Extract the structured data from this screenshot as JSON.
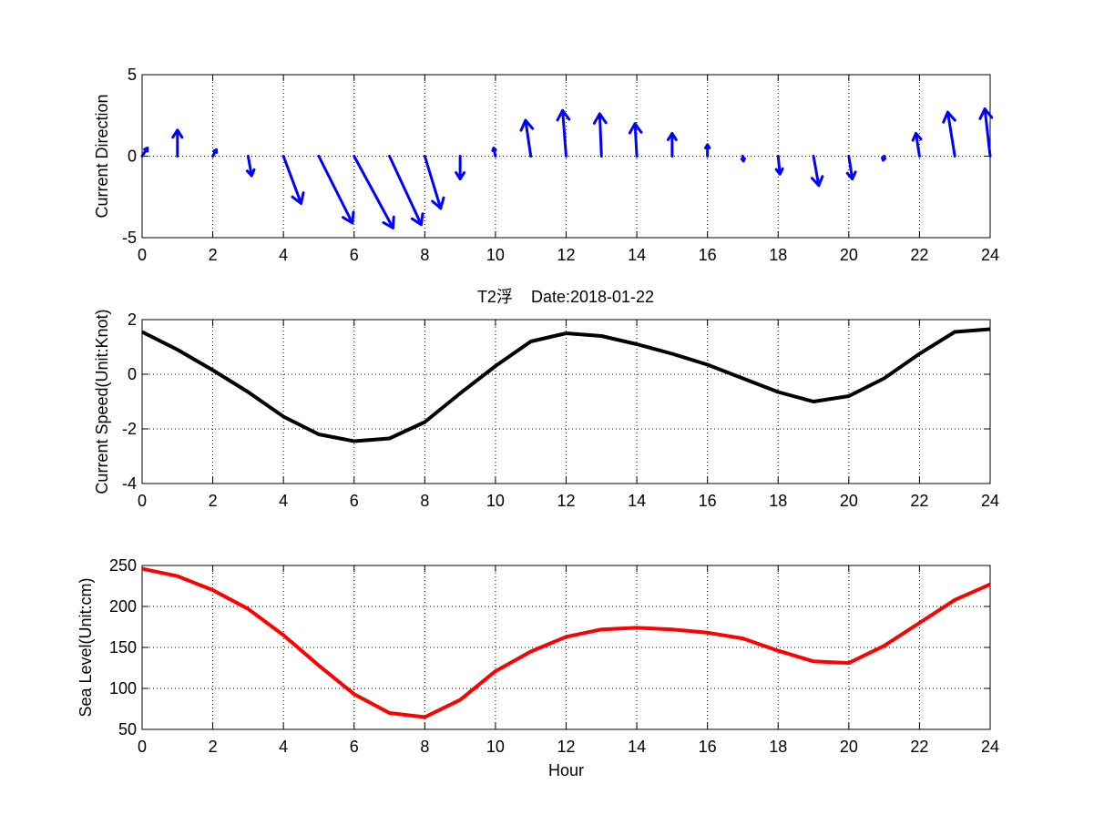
{
  "title": "T2浮    Date:2018-01-22",
  "colors": {
    "direction": "#0000ff",
    "speed": "#000000",
    "level": "#ff0000",
    "title": "#ff0000"
  },
  "chart_data": [
    {
      "type": "quiver",
      "ylabel": "Current Direction",
      "xlabel": "",
      "xlim": [
        0,
        24
      ],
      "ylim": [
        -5,
        5
      ],
      "xticks": [
        0,
        2,
        4,
        6,
        8,
        10,
        12,
        14,
        16,
        18,
        20,
        22,
        24
      ],
      "yticks": [
        -5,
        0,
        5
      ],
      "grid": true,
      "x": [
        0,
        1,
        2,
        3,
        4,
        5,
        6,
        7,
        8,
        9,
        10,
        11,
        12,
        13,
        14,
        15,
        16,
        17,
        18,
        19,
        20,
        21,
        22,
        23,
        24
      ],
      "u": [
        0.15,
        0.0,
        0.1,
        0.1,
        0.5,
        0.95,
        1.1,
        0.9,
        0.45,
        0.0,
        -0.05,
        -0.15,
        -0.1,
        -0.05,
        -0.05,
        0.0,
        0.0,
        0.02,
        0.05,
        0.15,
        0.1,
        -0.03,
        -0.1,
        -0.2,
        -0.15
      ],
      "v": [
        0.5,
        1.6,
        0.4,
        -1.2,
        -2.9,
        -4.1,
        -4.4,
        -4.2,
        -3.2,
        -1.4,
        0.5,
        2.2,
        2.8,
        2.6,
        2.0,
        1.4,
        0.7,
        -0.3,
        -1.1,
        -1.8,
        -1.4,
        -0.25,
        1.4,
        2.7,
        2.9
      ]
    },
    {
      "type": "line",
      "ylabel": "Current Speed(Unit:Knot)",
      "xlabel": "",
      "xlim": [
        0,
        24
      ],
      "ylim": [
        -4,
        2
      ],
      "xticks": [
        0,
        2,
        4,
        6,
        8,
        10,
        12,
        14,
        16,
        18,
        20,
        22,
        24
      ],
      "yticks": [
        -4,
        -2,
        0,
        2
      ],
      "grid": true,
      "series": [
        {
          "x": [
            0,
            1,
            2,
            3,
            4,
            5,
            6,
            7,
            8,
            9,
            10,
            11,
            12,
            13,
            14,
            15,
            16,
            17,
            18,
            19,
            20,
            21,
            22,
            23,
            24
          ],
          "values": [
            1.55,
            0.9,
            0.15,
            -0.65,
            -1.55,
            -2.2,
            -2.45,
            -2.35,
            -1.75,
            -0.7,
            0.3,
            1.2,
            1.5,
            1.4,
            1.1,
            0.75,
            0.35,
            -0.15,
            -0.65,
            -1.0,
            -0.8,
            -0.15,
            0.75,
            1.55,
            1.65
          ]
        }
      ]
    },
    {
      "type": "line",
      "ylabel": "Sea Level(Unit:cm)",
      "xlabel": "Hour",
      "xlim": [
        0,
        24
      ],
      "ylim": [
        50,
        250
      ],
      "xticks": [
        0,
        2,
        4,
        6,
        8,
        10,
        12,
        14,
        16,
        18,
        20,
        22,
        24
      ],
      "yticks": [
        50,
        100,
        150,
        200,
        250
      ],
      "grid": true,
      "series": [
        {
          "x": [
            0,
            1,
            2,
            3,
            4,
            5,
            6,
            7,
            8,
            9,
            10,
            11,
            12,
            13,
            14,
            15,
            16,
            17,
            18,
            19,
            20,
            21,
            22,
            23,
            24
          ],
          "values": [
            246,
            237,
            220,
            197,
            165,
            128,
            93,
            70,
            65,
            86,
            121,
            145,
            163,
            172,
            174,
            172,
            168,
            161,
            146,
            133,
            131,
            152,
            180,
            208,
            227
          ]
        }
      ]
    }
  ]
}
